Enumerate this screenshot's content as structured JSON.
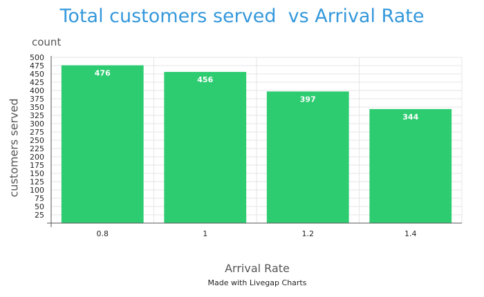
{
  "chart_data": {
    "type": "bar",
    "title": "Total customers served  vs Arrival Rate",
    "unit_label": "count",
    "xlabel": "Arrival Rate",
    "ylabel": "customers served",
    "categories": [
      "0.8",
      "1",
      "1.2",
      "1.4"
    ],
    "values": [
      476,
      456,
      397,
      344
    ],
    "data_labels": [
      "476",
      "456",
      "397",
      "344"
    ],
    "ylim": [
      0,
      500
    ],
    "y_ticks": [
      25,
      50,
      75,
      100,
      125,
      150,
      175,
      200,
      225,
      250,
      275,
      300,
      325,
      350,
      375,
      400,
      425,
      450,
      475,
      500
    ],
    "y_tick_labels": [
      "25",
      "50",
      "75",
      "100",
      "125",
      "150",
      "175",
      "200",
      "225",
      "250",
      "275",
      "300",
      "325",
      "350",
      "375",
      "400",
      "425",
      "450",
      "475",
      "500"
    ],
    "grid": true,
    "legend": "none",
    "bar_color": "#2ecc71",
    "title_color": "#3498db"
  },
  "credit": "Made with Livegap Charts"
}
